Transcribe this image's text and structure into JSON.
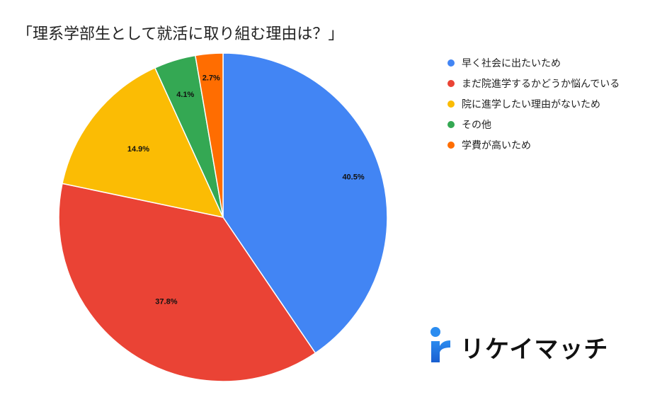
{
  "title": "「理系学部生として就活に取り組む理由は？」",
  "chart_data": {
    "type": "pie",
    "title": "「理系学部生として就活に取り組む理由は？」",
    "categories": [
      "早く社会に出たいため",
      "まだ院進学するかどうか悩んでいる",
      "院に進学したい理由がないため",
      "その他",
      "学費が高いため"
    ],
    "values": [
      40.5,
      37.8,
      14.9,
      4.1,
      2.7
    ],
    "labels": [
      "40.5%",
      "37.8%",
      "14.9%",
      "4.1%",
      "2.7%"
    ],
    "colors": [
      "#4285F4",
      "#EA4335",
      "#FBBC04",
      "#34A853",
      "#FF6D01"
    ],
    "start_angle": "12 o'clock",
    "direction": "clockwise",
    "legend_position": "right"
  },
  "legend": [
    {
      "label": "早く社会に出たいため",
      "color": "#4285F4"
    },
    {
      "label": "まだ院進学するかどうか悩んでいる",
      "color": "#EA4335"
    },
    {
      "label": "院に進学したい理由がないため",
      "color": "#FBBC04"
    },
    {
      "label": "その他",
      "color": "#34A853"
    },
    {
      "label": "学費が高いため",
      "color": "#FF6D01"
    }
  ],
  "logo": {
    "text": "リケイマッチ",
    "color": "#1A73E8"
  }
}
